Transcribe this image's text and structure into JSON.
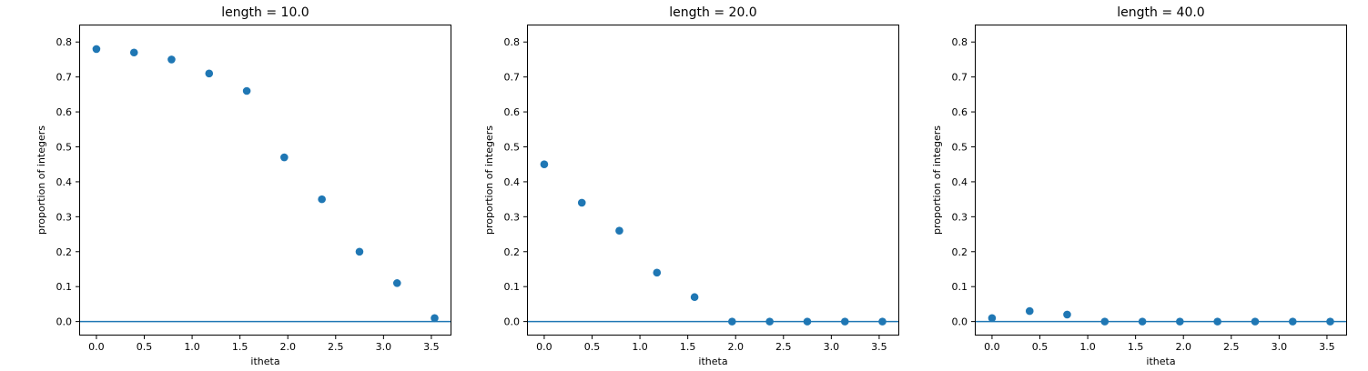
{
  "chart_data": [
    {
      "type": "scatter",
      "title": "length = 10.0",
      "xlabel": "itheta",
      "ylabel": "proportion of integers",
      "xlim": [
        -0.18,
        3.71
      ],
      "ylim": [
        -0.04,
        0.85
      ],
      "xticks": [
        "0.0",
        "0.5",
        "1.0",
        "1.5",
        "2.0",
        "2.5",
        "3.0",
        "3.5"
      ],
      "yticks": [
        "0.0",
        "0.1",
        "0.2",
        "0.3",
        "0.4",
        "0.5",
        "0.6",
        "0.7",
        "0.8"
      ],
      "hline": 0.0,
      "grid": false,
      "x": [
        0.0,
        0.393,
        0.785,
        1.178,
        1.571,
        1.963,
        2.356,
        2.749,
        3.142,
        3.534
      ],
      "y": [
        0.78,
        0.77,
        0.75,
        0.71,
        0.66,
        0.47,
        0.35,
        0.2,
        0.11,
        0.01
      ]
    },
    {
      "type": "scatter",
      "title": "length = 20.0",
      "xlabel": "itheta",
      "ylabel": "proportion of integers",
      "xlim": [
        -0.18,
        3.71
      ],
      "ylim": [
        -0.04,
        0.85
      ],
      "xticks": [
        "0.0",
        "0.5",
        "1.0",
        "1.5",
        "2.0",
        "2.5",
        "3.0",
        "3.5"
      ],
      "yticks": [
        "0.0",
        "0.1",
        "0.2",
        "0.3",
        "0.4",
        "0.5",
        "0.6",
        "0.7",
        "0.8"
      ],
      "hline": 0.0,
      "grid": false,
      "x": [
        0.0,
        0.393,
        0.785,
        1.178,
        1.571,
        1.963,
        2.356,
        2.749,
        3.142,
        3.534
      ],
      "y": [
        0.45,
        0.34,
        0.26,
        0.14,
        0.07,
        0.0,
        0.0,
        0.0,
        0.0,
        0.0
      ]
    },
    {
      "type": "scatter",
      "title": "length = 40.0",
      "xlabel": "itheta",
      "ylabel": "proportion of integers",
      "xlim": [
        -0.18,
        3.71
      ],
      "ylim": [
        -0.04,
        0.85
      ],
      "xticks": [
        "0.0",
        "0.5",
        "1.0",
        "1.5",
        "2.0",
        "2.5",
        "3.0",
        "3.5"
      ],
      "yticks": [
        "0.0",
        "0.1",
        "0.2",
        "0.3",
        "0.4",
        "0.5",
        "0.6",
        "0.7",
        "0.8"
      ],
      "hline": 0.0,
      "grid": false,
      "x": [
        0.0,
        0.393,
        0.785,
        1.178,
        1.571,
        1.963,
        2.356,
        2.749,
        3.142,
        3.534
      ],
      "y": [
        0.01,
        0.03,
        0.02,
        0.0,
        0.0,
        0.0,
        0.0,
        0.0,
        0.0,
        0.0
      ]
    }
  ],
  "colors": {
    "marker": "#1f77b4",
    "hline": "#1f77b4",
    "axes": "#000000"
  }
}
